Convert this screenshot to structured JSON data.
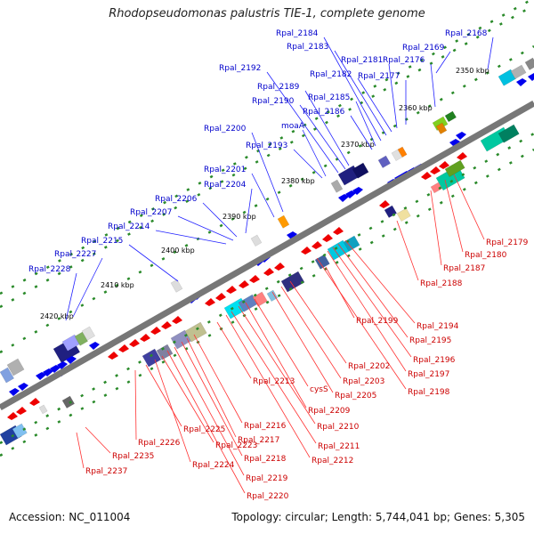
{
  "title": "Rhodopseudomonas palustris TIE-1, complete genome",
  "footer": {
    "accession": "Accession: NC_011004",
    "topology": "Topology: circular; Length: 5,744,041 bp; Genes: 5,305"
  },
  "colors": {
    "forward_label": "#0000cc",
    "reverse_label": "#cc0000",
    "backbone": "#777777",
    "tick": "#2a8a2a"
  },
  "scale_labels": [
    "2350 kbp",
    "2360 kbp",
    "2370 kbp",
    "2380 kbp",
    "2390 kbp",
    "2400 kbp",
    "2410 kbp",
    "2420 kbp"
  ],
  "forward_genes": [
    "Rpal_2168",
    "Rpal_2169",
    "Rpal_2176",
    "Rpal_2177",
    "Rpal_2181",
    "Rpal_2182",
    "Rpal_2183",
    "Rpal_2184",
    "Rpal_2185",
    "Rpal_2186",
    "Rpal_2189",
    "Rpal_2190",
    "Rpal_2192",
    "moaA",
    "Rpal_2193",
    "Rpal_2200",
    "Rpal_2201",
    "Rpal_2204",
    "Rpal_2206",
    "Rpal_2207",
    "Rpal_2214",
    "Rpal_2215",
    "Rpal_2227",
    "Rpal_2228"
  ],
  "reverse_genes": [
    "Rpal_2179",
    "Rpal_2180",
    "Rpal_2187",
    "Rpal_2188",
    "Rpal_2194",
    "Rpal_2195",
    "Rpal_2196",
    "Rpal_2197",
    "Rpal_2198",
    "Rpal_2199",
    "Rpal_2202",
    "Rpal_2203",
    "Rpal_2205",
    "cysS",
    "Rpal_2209",
    "Rpal_2210",
    "Rpal_2211",
    "Rpal_2212",
    "Rpal_2213",
    "Rpal_2216",
    "Rpal_2217",
    "Rpal_2218",
    "Rpal_2219",
    "Rpal_2220",
    "Rpal_2223",
    "Rpal_2224",
    "Rpal_2225",
    "Rpal_2226",
    "Rpal_2235",
    "Rpal_2237"
  ]
}
